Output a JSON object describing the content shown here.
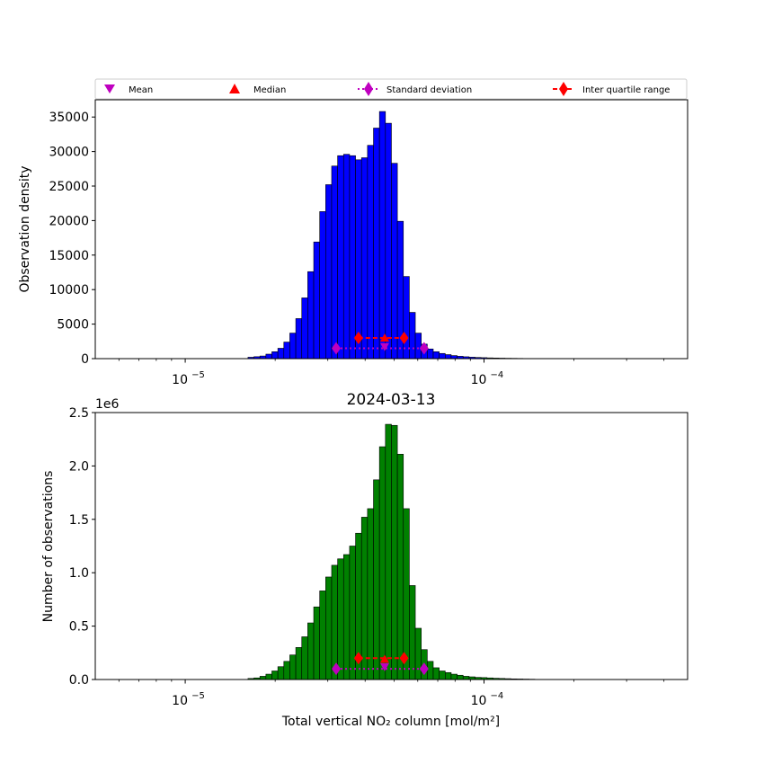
{
  "chart_data": [
    {
      "type": "bar",
      "panel": "top",
      "title": "",
      "xlabel": "",
      "ylabel": "Observation density",
      "xscale": "log",
      "xlim": [
        5e-06,
        0.00048
      ],
      "ylim": [
        0,
        37500
      ],
      "yticks": [
        0,
        5000,
        10000,
        15000,
        20000,
        25000,
        30000,
        35000
      ],
      "xticks": [
        1e-05,
        0.0001
      ],
      "xtick_labels": [
        "10",
        "10"
      ],
      "xtick_exponents": [
        "−5",
        "−4"
      ],
      "bar_color": "#0000ff",
      "bin_log_start": -4.79,
      "bin_log_width": 0.02,
      "values": [
        200,
        280,
        380,
        650,
        1000,
        1500,
        2400,
        3700,
        5800,
        8800,
        12600,
        16900,
        21300,
        25200,
        27900,
        29400,
        29600,
        29400,
        28800,
        29100,
        30900,
        33400,
        35800,
        34100,
        28300,
        19900,
        11900,
        6700,
        3700,
        2100,
        1400,
        1000,
        750,
        580,
        440,
        340,
        270,
        210,
        170,
        140,
        110,
        90,
        70,
        55,
        45,
        35,
        25,
        20
      ],
      "markers": {
        "mean": {
          "x": 4.65e-05,
          "y": 1600
        },
        "median": {
          "x": 4.65e-05,
          "y": 3000
        },
        "std": {
          "x": [
            3.2e-05,
            6.3e-05
          ],
          "y": 1500
        },
        "iqr": {
          "x": [
            3.8e-05,
            5.4e-05
          ],
          "y": 3000
        }
      },
      "grid": false
    },
    {
      "type": "bar",
      "panel": "bottom",
      "title": "2024-03-13",
      "xlabel": "Total vertical NO₂ column [mol/m²]",
      "ylabel": "Number of observations",
      "y_offset_label": "1e6",
      "xscale": "log",
      "xlim": [
        5e-06,
        0.00048
      ],
      "ylim": [
        0,
        2.5
      ],
      "yticks": [
        0.0,
        0.5,
        1.0,
        1.5,
        2.0,
        2.5
      ],
      "ytick_labels": [
        "0.0",
        "0.5",
        "1.0",
        "1.5",
        "2.0",
        "2.5"
      ],
      "xticks": [
        1e-05,
        0.0001
      ],
      "xtick_labels": [
        "10",
        "10"
      ],
      "xtick_exponents": [
        "−5",
        "−4"
      ],
      "bar_color": "#008000",
      "bin_log_start": -4.79,
      "bin_log_width": 0.02,
      "values": [
        0.01,
        0.015,
        0.03,
        0.05,
        0.08,
        0.12,
        0.17,
        0.23,
        0.3,
        0.4,
        0.53,
        0.68,
        0.83,
        0.96,
        1.07,
        1.13,
        1.17,
        1.25,
        1.37,
        1.52,
        1.6,
        1.87,
        2.18,
        2.39,
        2.38,
        2.11,
        1.6,
        0.88,
        0.48,
        0.28,
        0.17,
        0.11,
        0.08,
        0.065,
        0.05,
        0.04,
        0.03,
        0.025,
        0.02,
        0.018,
        0.015,
        0.012,
        0.01,
        0.008,
        0.006,
        0.005,
        0.004,
        0.003
      ],
      "markers": {
        "mean": {
          "x": 4.65e-05,
          "y": 0.11
        },
        "median": {
          "x": 4.65e-05,
          "y": 0.19
        },
        "std": {
          "x": [
            3.2e-05,
            6.3e-05
          ],
          "y": 0.1
        },
        "iqr": {
          "x": [
            3.8e-05,
            5.4e-05
          ],
          "y": 0.2
        }
      },
      "grid": false
    }
  ],
  "legend": {
    "placement": "top",
    "items": [
      {
        "label": "Mean",
        "marker": "triangle-down",
        "color": "#bf00bf"
      },
      {
        "label": "Median",
        "marker": "triangle-up",
        "color": "#ff0000"
      },
      {
        "label": "Standard deviation",
        "marker": "diamond-dotted-line",
        "color": "#bf00bf"
      },
      {
        "label": "Inter quartile range",
        "marker": "diamond-dashed-line",
        "color": "#ff0000"
      }
    ]
  }
}
